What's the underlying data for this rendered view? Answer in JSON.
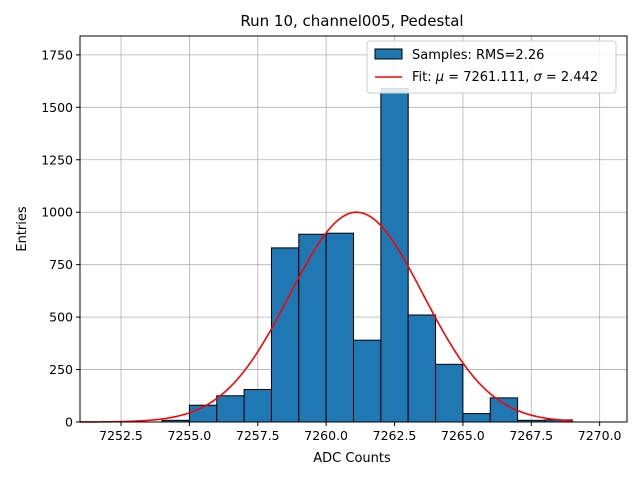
{
  "chart_data": {
    "type": "bar",
    "title": "Run 10, channel005, Pedestal",
    "xlabel": "ADC Counts",
    "ylabel": "Entries",
    "xlim": [
      7251.0,
      7271.0
    ],
    "ylim": [
      0,
      1840
    ],
    "xticks": [
      7252.5,
      7255.0,
      7257.5,
      7260.0,
      7262.5,
      7265.0,
      7267.5,
      7270.0
    ],
    "xtick_labels": [
      "7252.5",
      "7255.0",
      "7257.5",
      "7260.0",
      "7262.5",
      "7265.0",
      "7267.5",
      "7270.0"
    ],
    "yticks": [
      0,
      250,
      500,
      750,
      1000,
      1250,
      1500,
      1750
    ],
    "ytick_labels": [
      "0",
      "250",
      "500",
      "750",
      "1000",
      "1250",
      "1500",
      "1750"
    ],
    "grid": true,
    "legend_position": "top-right",
    "histogram": {
      "name": "Samples: RMS=2.26",
      "color": "#1f77b4",
      "edge_color": "#000000",
      "bin_edges": [
        7254,
        7255,
        7256,
        7257,
        7258,
        7259,
        7260,
        7261,
        7262,
        7263,
        7264,
        7265,
        7266,
        7267,
        7268,
        7269
      ],
      "counts": [
        8,
        80,
        125,
        155,
        830,
        895,
        900,
        390,
        1590,
        510,
        275,
        40,
        115,
        8,
        10
      ]
    },
    "fit": {
      "name": "Fit: μ = 7261.111, σ = 2.442",
      "label_prefix": "Fit: ",
      "mu_symbol": "μ",
      "mu_text": " = 7261.111, ",
      "sigma_symbol": "σ",
      "sigma_text": " = 2.442",
      "color": "#ff0000",
      "mu": 7261.111,
      "sigma": 2.442,
      "amplitude": 1000,
      "x_range": [
        7251.0,
        7269.0
      ]
    }
  }
}
